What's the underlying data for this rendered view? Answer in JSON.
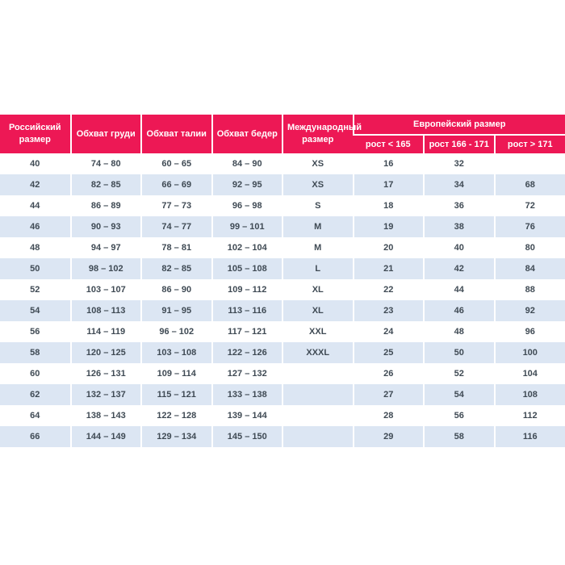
{
  "colors": {
    "header_bg": "#ED1855",
    "header_text": "#ffffff",
    "row_bg": "#ffffff",
    "row_alt_bg": "#DCE6F3",
    "cell_text": "#3F4A54",
    "separator": "#ffffff"
  },
  "chart_data": {
    "type": "table",
    "header": {
      "russian_size": "Российский размер",
      "chest": "Обхват груди",
      "waist": "Обхват талии",
      "hips": "Обхват бедер",
      "international_size": "Международный размер",
      "european_size": "Европейский размер",
      "height_lt_165": "рост < 165",
      "height_166_171": "рост 166 - 171",
      "height_gt_171": "рост > 171"
    },
    "rows": [
      [
        "40",
        "74 – 80",
        "60 – 65",
        "84 – 90",
        "XS",
        "16",
        "32",
        ""
      ],
      [
        "42",
        "82 – 85",
        "66 – 69",
        "92 – 95",
        "XS",
        "17",
        "34",
        "68"
      ],
      [
        "44",
        "86 – 89",
        "77 – 73",
        "96 – 98",
        "S",
        "18",
        "36",
        "72"
      ],
      [
        "46",
        "90 – 93",
        "74 – 77",
        "99 – 101",
        "M",
        "19",
        "38",
        "76"
      ],
      [
        "48",
        "94 – 97",
        "78 – 81",
        "102 – 104",
        "M",
        "20",
        "40",
        "80"
      ],
      [
        "50",
        "98 – 102",
        "82 – 85",
        "105 – 108",
        "L",
        "21",
        "42",
        "84"
      ],
      [
        "52",
        "103 – 107",
        "86 – 90",
        "109 – 112",
        "XL",
        "22",
        "44",
        "88"
      ],
      [
        "54",
        "108 – 113",
        "91 – 95",
        "113 – 116",
        "XL",
        "23",
        "46",
        "92"
      ],
      [
        "56",
        "114 – 119",
        "96 – 102",
        "117 – 121",
        "XXL",
        "24",
        "48",
        "96"
      ],
      [
        "58",
        "120 – 125",
        "103 – 108",
        "122 – 126",
        "XXXL",
        "25",
        "50",
        "100"
      ],
      [
        "60",
        "126 – 131",
        "109 – 114",
        "127 – 132",
        "",
        "26",
        "52",
        "104"
      ],
      [
        "62",
        "132 – 137",
        "115 – 121",
        "133 – 138",
        "",
        "27",
        "54",
        "108"
      ],
      [
        "64",
        "138 – 143",
        "122 – 128",
        "139 – 144",
        "",
        "28",
        "56",
        "112"
      ],
      [
        "66",
        "144 – 149",
        "129 – 134",
        "145 – 150",
        "",
        "29",
        "58",
        "116"
      ]
    ]
  }
}
